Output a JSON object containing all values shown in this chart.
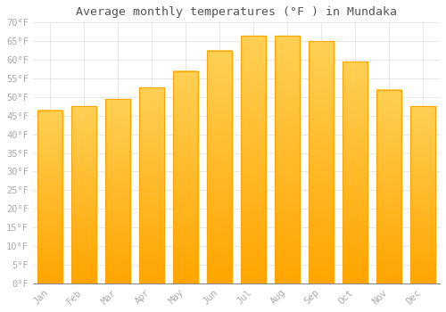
{
  "title": "Average monthly temperatures (°F ) in Mundaka",
  "months": [
    "Jan",
    "Feb",
    "Mar",
    "Apr",
    "May",
    "Jun",
    "Jul",
    "Aug",
    "Sep",
    "Oct",
    "Nov",
    "Dec"
  ],
  "values": [
    46.5,
    47.5,
    49.5,
    52.5,
    57,
    62.5,
    66.5,
    66.5,
    65,
    59.5,
    52,
    47.5
  ],
  "bar_color_top": "#FFC020",
  "bar_color_bottom": "#FFA500",
  "background_color": "#FFFFFF",
  "grid_color": "#DDDDDD",
  "ylim": [
    0,
    70
  ],
  "yticks": [
    0,
    5,
    10,
    15,
    20,
    25,
    30,
    35,
    40,
    45,
    50,
    55,
    60,
    65,
    70
  ],
  "title_fontsize": 9.5,
  "tick_fontsize": 7.5,
  "tick_color": "#AAAAAA"
}
